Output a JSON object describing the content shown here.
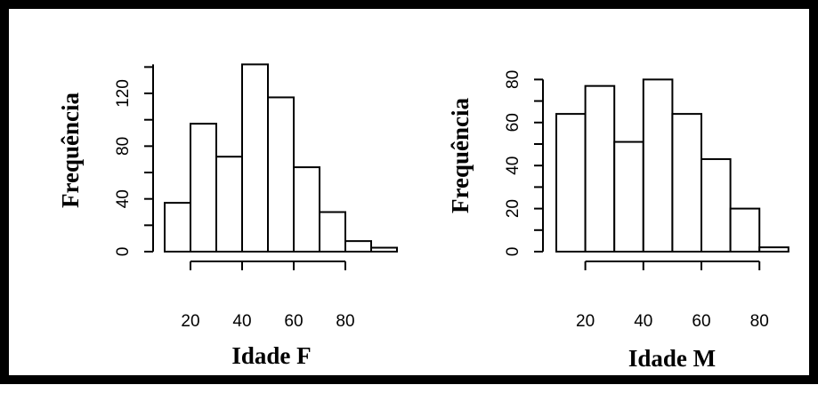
{
  "chart_data": [
    {
      "type": "histogram",
      "xlabel": "Idade F",
      "ylabel": "Frequência",
      "bin_edges": [
        10,
        20,
        30,
        40,
        50,
        60,
        70,
        80,
        90,
        100
      ],
      "values": [
        37,
        97,
        72,
        142,
        117,
        64,
        30,
        8,
        3
      ],
      "x_ticks": [
        20,
        40,
        60,
        80
      ],
      "x_tick_labels": [
        "20",
        "40",
        "60",
        "80"
      ],
      "y_ticks": [
        0,
        40,
        80,
        120
      ],
      "y_tick_labels": [
        "0",
        "40",
        "80",
        "120"
      ],
      "ylim": [
        0,
        142
      ],
      "grid": false,
      "legend": "none"
    },
    {
      "type": "histogram",
      "xlabel": "Idade M",
      "ylabel": "Frequência",
      "bin_edges": [
        10,
        20,
        30,
        40,
        50,
        60,
        70,
        80,
        90
      ],
      "values": [
        64,
        77,
        51,
        80,
        64,
        43,
        20,
        2
      ],
      "x_ticks": [
        20,
        40,
        60,
        80
      ],
      "x_tick_labels": [
        "20",
        "40",
        "60",
        "80"
      ],
      "y_ticks": [
        0,
        20,
        40,
        60,
        80
      ],
      "y_tick_labels": [
        "0",
        "20",
        "40",
        "60",
        "80"
      ],
      "ylim": [
        0,
        80
      ],
      "grid": false,
      "legend": "none"
    }
  ]
}
